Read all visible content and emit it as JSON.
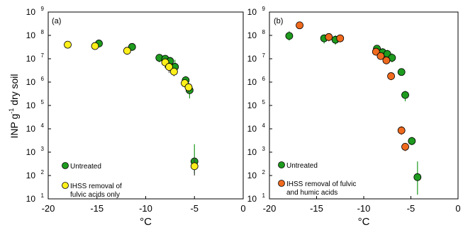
{
  "figure": {
    "y_label_main": "INP g",
    "y_label_sup": "-1",
    "y_label_rest": " dry soil"
  },
  "chart_data": [
    {
      "type": "scatter",
      "panel_label": "(a)",
      "xlabel": "°C",
      "xlim": [
        -20,
        0
      ],
      "ylim": [
        10,
        1000000000
      ],
      "yscale": "log",
      "x_ticks": [
        "-20",
        "-15",
        "-10",
        "-5",
        "0"
      ],
      "y_ticks": [
        {
          "base": "10",
          "exp": "1"
        },
        {
          "base": "10",
          "exp": "2"
        },
        {
          "base": "10",
          "exp": "3"
        },
        {
          "base": "10",
          "exp": "4"
        },
        {
          "base": "10",
          "exp": "5"
        },
        {
          "base": "10",
          "exp": "6"
        },
        {
          "base": "10",
          "exp": "7"
        },
        {
          "base": "10",
          "exp": "8"
        },
        {
          "base": "10",
          "exp": "9"
        }
      ],
      "legend": [
        {
          "label": "Untreated"
        },
        {
          "label": "IHSS removal of\nfulvic acids only"
        }
      ],
      "series": [
        {
          "name": "Untreated",
          "color": "#1e9b1e",
          "points": [
            {
              "x": -14.8,
              "y": 45000000,
              "ylo": 32000000,
              "yhi": 60000000
            },
            {
              "x": -11.4,
              "y": 32000000,
              "ylo": 24000000,
              "yhi": 42000000
            },
            {
              "x": -8.6,
              "y": 11000000,
              "ylo": 7000000,
              "yhi": 16000000
            },
            {
              "x": -8.0,
              "y": 10000000,
              "ylo": 6000000,
              "yhi": 14000000
            },
            {
              "x": -7.5,
              "y": 8000000,
              "ylo": 4500000,
              "yhi": 12000000
            },
            {
              "x": -7.0,
              "y": 4500000,
              "ylo": 2500000,
              "yhi": 9000000
            },
            {
              "x": -5.9,
              "y": 1200000,
              "ylo": 800000,
              "yhi": 1800000
            },
            {
              "x": -5.5,
              "y": 450000,
              "ylo": 200000,
              "yhi": 800000
            },
            {
              "x": -5.0,
              "y": 400,
              "ylo": 120,
              "yhi": 2200
            }
          ]
        },
        {
          "name": "IHSS removal of fulvic acids only",
          "color": "#ffef1a",
          "points": [
            {
              "x": -18.0,
              "y": 40000000
            },
            {
              "x": -15.2,
              "y": 35000000,
              "ylo": 25000000,
              "yhi": 48000000
            },
            {
              "x": -11.9,
              "y": 22000000,
              "ylo": 15000000,
              "yhi": 30000000
            },
            {
              "x": -8.0,
              "y": 7000000,
              "ylo": 4000000,
              "yhi": 11000000
            },
            {
              "x": -7.6,
              "y": 4500000,
              "ylo": 2500000,
              "yhi": 7000000
            },
            {
              "x": -7.1,
              "y": 2800000,
              "ylo": 1800000,
              "yhi": 4000000
            },
            {
              "x": -6.0,
              "y": 900000,
              "ylo": 600000,
              "yhi": 1300000
            },
            {
              "x": -5.6,
              "y": 600000,
              "ylo": 350000,
              "yhi": 900000
            },
            {
              "x": -5.0,
              "y": 250,
              "ylo": 100,
              "yhi": 600
            }
          ]
        }
      ]
    },
    {
      "type": "scatter",
      "panel_label": "(b)",
      "xlabel": "°C",
      "xlim": [
        -20,
        0
      ],
      "ylim": [
        10,
        1000000000
      ],
      "yscale": "log",
      "x_ticks": [
        "-20",
        "-15",
        "-10",
        "-5",
        "0"
      ],
      "legend": [
        {
          "label": "Untreated"
        },
        {
          "label": "IHSS removal of fulvic\nand humic acids"
        }
      ],
      "series": [
        {
          "name": "Untreated",
          "color": "#1e9b1e",
          "points": [
            {
              "x": -17.9,
              "y": 95000000,
              "ylo": 60000000,
              "yhi": 150000000
            },
            {
              "x": -14.2,
              "y": 75000000,
              "ylo": 45000000,
              "yhi": 110000000
            },
            {
              "x": -13.0,
              "y": 65000000,
              "ylo": 40000000,
              "yhi": 100000000
            },
            {
              "x": -8.6,
              "y": 27000000,
              "ylo": 20000000,
              "yhi": 35000000
            },
            {
              "x": -8.0,
              "y": 19000000,
              "ylo": 12000000,
              "yhi": 28000000
            },
            {
              "x": -7.5,
              "y": 16000000,
              "ylo": 10000000,
              "yhi": 24000000
            },
            {
              "x": -7.0,
              "y": 11000000,
              "ylo": 7000000,
              "yhi": 17000000
            },
            {
              "x": -6.0,
              "y": 2700000,
              "ylo": 1900000,
              "yhi": 3600000
            },
            {
              "x": -5.6,
              "y": 280000,
              "ylo": 150000,
              "yhi": 420000
            },
            {
              "x": -4.9,
              "y": 3000,
              "ylo": 2000,
              "yhi": 4500
            },
            {
              "x": -4.3,
              "y": 85,
              "ylo": 15,
              "yhi": 400
            }
          ]
        },
        {
          "name": "IHSS removal of fulvic and humic acids",
          "color": "#f06a1e",
          "points": [
            {
              "x": -16.8,
              "y": 270000000,
              "ylo": 190000000,
              "yhi": 360000000
            },
            {
              "x": -13.7,
              "y": 85000000,
              "ylo": 55000000,
              "yhi": 120000000
            },
            {
              "x": -12.5,
              "y": 75000000,
              "ylo": 50000000,
              "yhi": 110000000
            },
            {
              "x": -8.7,
              "y": 20000000,
              "ylo": 15000000,
              "yhi": 26000000
            },
            {
              "x": -8.2,
              "y": 13000000,
              "ylo": 9000000,
              "yhi": 18000000
            },
            {
              "x": -7.6,
              "y": 8500000,
              "ylo": 6000000,
              "yhi": 12000000
            },
            {
              "x": -7.1,
              "y": 1800000,
              "ylo": 1200000,
              "yhi": 2600000
            },
            {
              "x": -6.0,
              "y": 8500,
              "ylo": 5500,
              "yhi": 13000
            },
            {
              "x": -5.6,
              "y": 1700,
              "ylo": 1100,
              "yhi": 2500
            }
          ]
        }
      ]
    }
  ]
}
